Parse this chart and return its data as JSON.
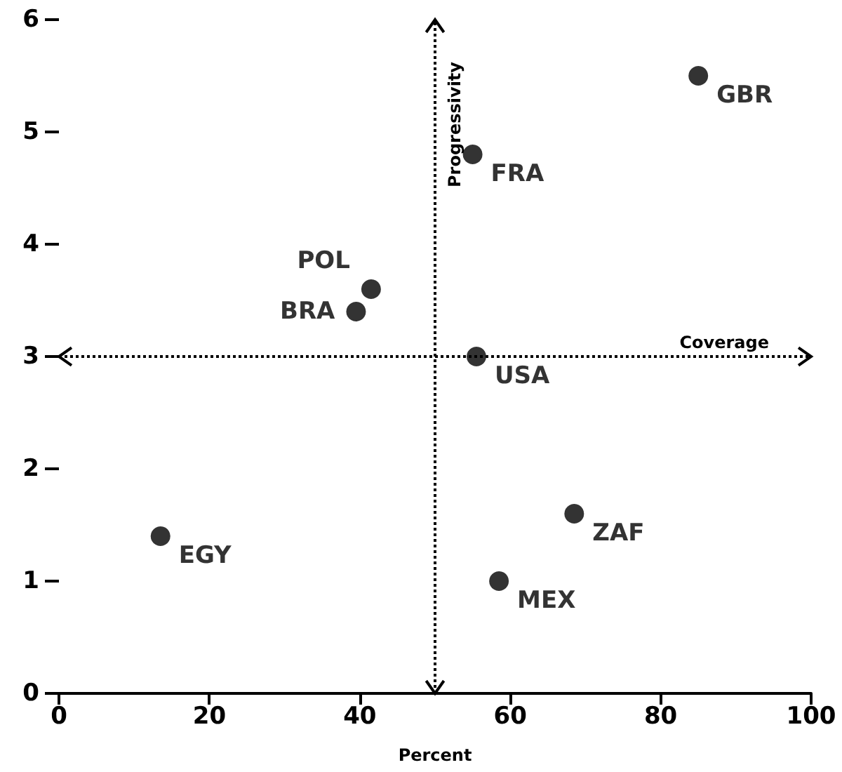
{
  "chart_data": {
    "type": "scatter",
    "xlabel": "Percent",
    "x": [
      85,
      55,
      41.5,
      39.5,
      55.5,
      13.5,
      68.5,
      58.5
    ],
    "values": [
      5.5,
      4.8,
      3.6,
      3.4,
      3.0,
      1.4,
      1.6,
      1.0
    ],
    "color": "#000000",
    "marker": "circle",
    "xlim": [
      0,
      100
    ],
    "xticks": [
      0,
      20,
      40,
      60,
      80,
      100
    ],
    "ylim": [
      0,
      6
    ],
    "yticks": [
      0,
      1,
      2,
      3,
      4,
      5,
      6
    ],
    "grid": false,
    "ref_lines": [
      {
        "axis": "x",
        "value": 50,
        "label": "Progressivity",
        "line_style": "dotted"
      },
      {
        "axis": "y",
        "value": 3,
        "label": "Coverage",
        "line_style": "dotted"
      }
    ],
    "annotations": [
      {
        "text": "GBR",
        "x": 85,
        "y": 5.5
      },
      {
        "text": "FRA",
        "x": 55,
        "y": 4.8
      },
      {
        "text": "POL",
        "x": 41.5,
        "y": 3.6
      },
      {
        "text": "BRA",
        "x": 39.5,
        "y": 3.4
      },
      {
        "text": "USA",
        "x": 55.5,
        "y": 3.0
      },
      {
        "text": "EGY",
        "x": 13.5,
        "y": 1.4
      },
      {
        "text": "ZAF",
        "x": 68.5,
        "y": 1.6
      },
      {
        "text": "MEX",
        "x": 58.5,
        "y": 1.0
      }
    ]
  }
}
